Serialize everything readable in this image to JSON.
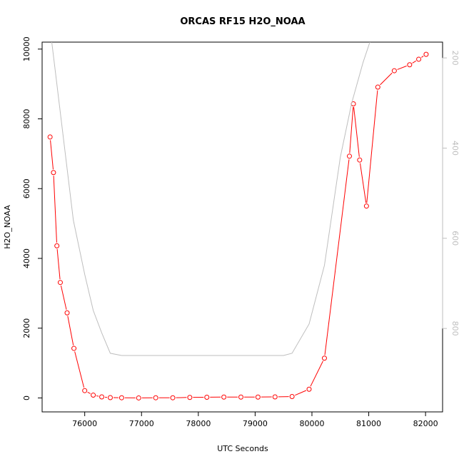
{
  "chart_data": {
    "type": "line",
    "title": "ORCAS RF15 H2O_NOAA",
    "xlabel": "UTC Seconds",
    "ylabel": "H2O_NOAA",
    "xlim": [
      75250,
      82300
    ],
    "ylim": [
      -400,
      10200
    ],
    "xticks": [
      "76000",
      "77000",
      "78000",
      "79000",
      "80000",
      "81000",
      "82000"
    ],
    "yticks": [
      "0",
      "2000",
      "4000",
      "6000",
      "8000",
      "10000"
    ],
    "y2lim": [
      985,
      165
    ],
    "y2ticks": [
      "200",
      "400",
      "600",
      "800"
    ],
    "grid": false,
    "series": [
      {
        "color": "#ff0000",
        "marker": "open-circle",
        "x": [
          75390,
          75450,
          75510,
          75570,
          75690,
          75810,
          76000,
          76150,
          76300,
          76450,
          76650,
          76950,
          77250,
          77550,
          77850,
          78150,
          78450,
          78750,
          79050,
          79350,
          79650,
          79950,
          80220,
          80660,
          80730,
          80840,
          80960,
          81160,
          81450,
          81720,
          81880,
          82010
        ],
        "y": [
          7480,
          6460,
          4360,
          3310,
          2440,
          1420,
          210,
          80,
          30,
          10,
          5,
          0,
          5,
          5,
          15,
          20,
          25,
          25,
          25,
          30,
          40,
          250,
          1140,
          6930,
          8430,
          6820,
          5500,
          8910,
          9380,
          9550,
          9710,
          9850
        ]
      },
      {
        "color": "#bebebe",
        "axis": "right",
        "x": [
          75420,
          75550,
          75800,
          76000,
          76150,
          76300,
          76450,
          76650,
          77000,
          77500,
          78000,
          78500,
          79000,
          79500,
          79650,
          79950,
          80220,
          80500,
          80700,
          80900,
          81020
        ],
        "y": [
          165,
          300,
          560,
          680,
          760,
          810,
          855,
          860,
          860,
          860,
          860,
          860,
          860,
          860,
          855,
          790,
          660,
          420,
          300,
          210,
          165
        ]
      }
    ]
  }
}
